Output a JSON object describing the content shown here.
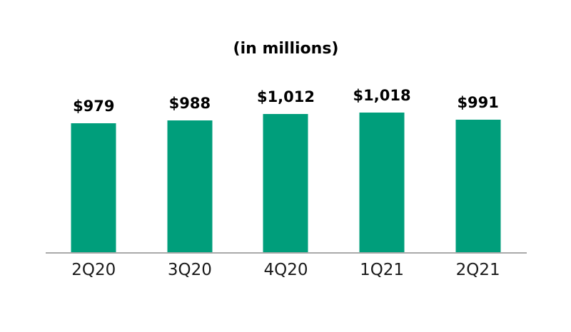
{
  "chart_data": {
    "type": "bar",
    "title": "(in millions)",
    "categories": [
      "2Q20",
      "3Q20",
      "4Q20",
      "1Q21",
      "2Q21"
    ],
    "values": [
      979,
      988,
      1012,
      1018,
      991
    ],
    "value_labels": [
      "$979",
      "$988",
      "$1,012",
      "$1,018",
      "$991"
    ],
    "xlabel": "",
    "ylabel": "",
    "grid": false,
    "legend": "none",
    "data_labels_position": "above bars",
    "bar_color": "#009e7b",
    "axis_line_color": "#a9a9a9",
    "value_label_color": "#000000",
    "tick_label_color": "#1a1a1a",
    "title_color": "#000000",
    "background_color": "#ffffff"
  }
}
